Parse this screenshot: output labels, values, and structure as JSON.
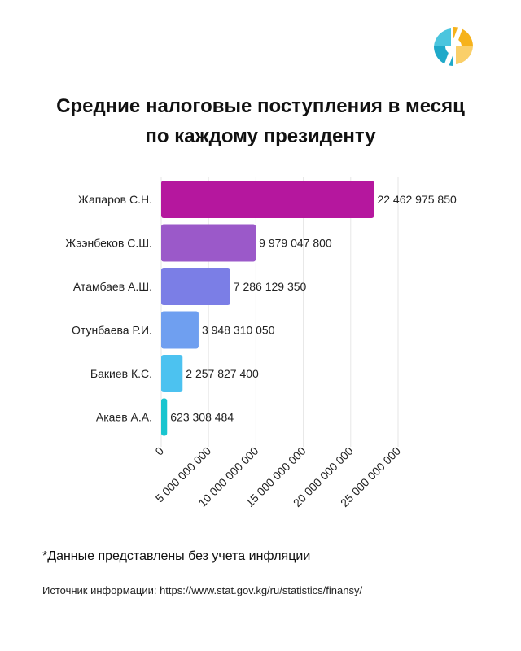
{
  "title": {
    "line1": "Средние налоговые поступления в месяц",
    "line2": "по каждому президенту"
  },
  "logo": {
    "icon": "logo-icon",
    "colors": [
      "#f6b21b",
      "#1fa9c9"
    ]
  },
  "chart_data": {
    "type": "bar",
    "orientation": "horizontal",
    "categories": [
      "Жапаров С.Н.",
      "Жээнбеков С.Ш.",
      "Атамбаев А.Ш.",
      "Отунбаева Р.И.",
      "Бакиев К.С.",
      "Акаев А.А."
    ],
    "values": [
      22462975850,
      9979047800,
      7286129350,
      3948310050,
      2257827400,
      623308484
    ],
    "value_labels": [
      "22 462 975 850",
      "9 979 047 800",
      "7 286 129 350",
      "3 948 310 050",
      "2 257 827 400",
      "623 308 484"
    ],
    "colors": [
      "#b5179e",
      "#9b59c9",
      "#7b7ee6",
      "#6f9ff0",
      "#4cc2f0",
      "#19c5cf"
    ],
    "xlim": [
      0,
      25000000000
    ],
    "ticks": [
      0,
      5000000000,
      10000000000,
      15000000000,
      20000000000,
      25000000000
    ],
    "tick_labels": [
      "0",
      "5 000 000 000",
      "10 000 000 000",
      "15 000 000 000",
      "20 000 000 000",
      "25 000 000 000"
    ],
    "grid": true,
    "legend": "none"
  },
  "footnote": "*Данные представлены без учета инфляции",
  "source": "Источник информации: https://www.stat.gov.kg/ru/statistics/finansy/"
}
